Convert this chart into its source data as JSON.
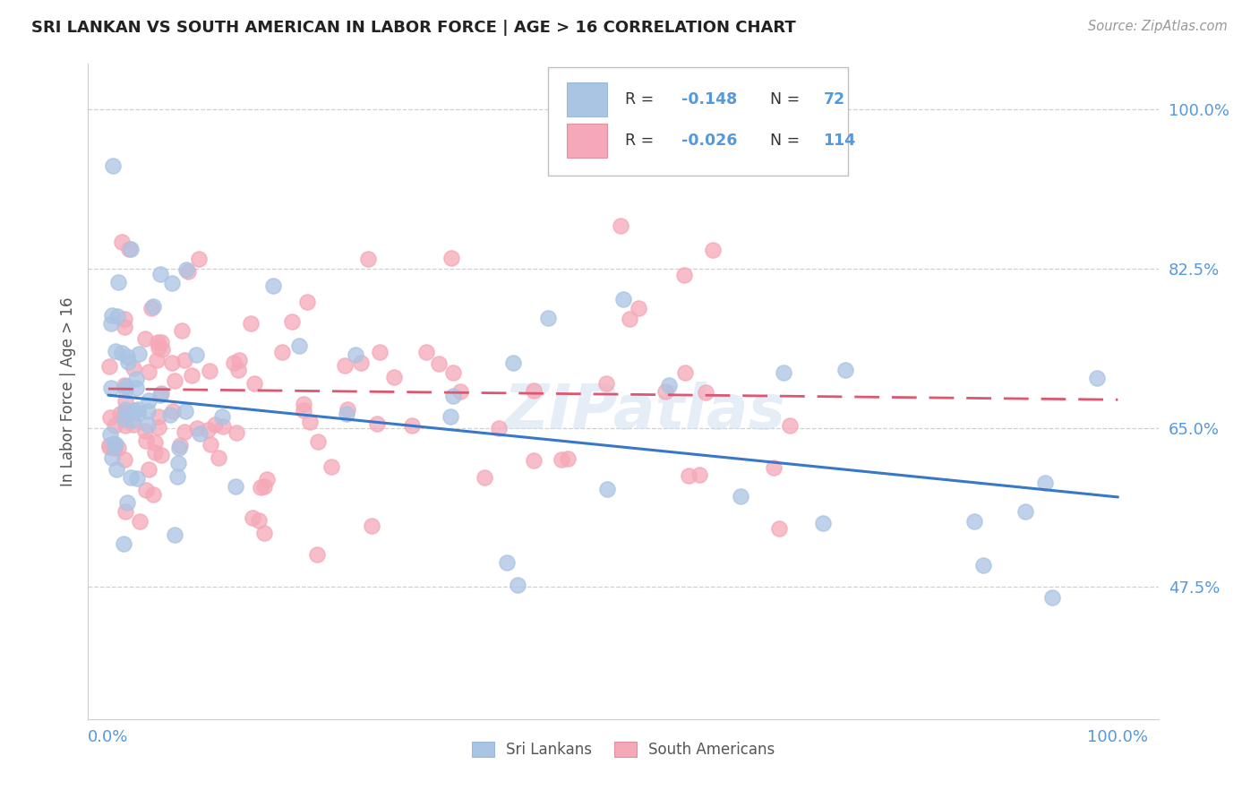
{
  "title": "SRI LANKAN VS SOUTH AMERICAN IN LABOR FORCE | AGE > 16 CORRELATION CHART",
  "source": "Source: ZipAtlas.com",
  "ylabel": "In Labor Force | Age > 16",
  "sri_lankan_R": -0.148,
  "sri_lankan_N": 72,
  "south_american_R": -0.026,
  "south_american_N": 114,
  "sri_lankan_color": "#aac4e4",
  "south_american_color": "#f5a8b8",
  "sri_lankan_line_color": "#3878c8",
  "south_american_line_color": "#e05570",
  "legend_label_sri": "Sri Lankans",
  "legend_label_sa": "South Americans",
  "watermark": "ZIPatlas",
  "background_color": "#ffffff",
  "grid_color": "#c8c8c8",
  "title_color": "#222222",
  "axis_label_color": "#5599dd",
  "y_ticks": [
    0.475,
    0.65,
    0.825,
    1.0
  ],
  "y_tick_labels": [
    "47.5%",
    "65.0%",
    "82.5%",
    "100.0%"
  ],
  "x_ticks": [
    0.0,
    1.0
  ],
  "x_tick_labels": [
    "0.0%",
    "100.0%"
  ],
  "sl_line": [
    0.686,
    0.574
  ],
  "sa_line": [
    0.693,
    0.681
  ],
  "y_lim": [
    0.33,
    1.05
  ]
}
